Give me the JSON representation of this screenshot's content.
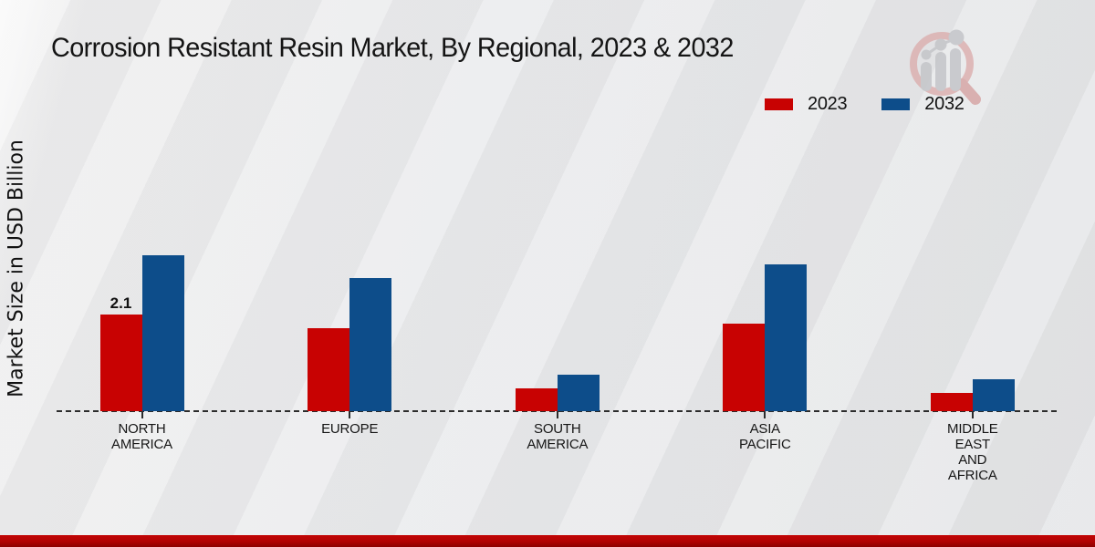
{
  "title": "Corrosion Resistant Resin Market, By Regional, 2023 & 2032",
  "y_axis_label": "Market Size in USD Billion",
  "legend": {
    "items": [
      {
        "label": "2023",
        "color": "#c80202"
      },
      {
        "label": "2032",
        "color": "#0d4d8a"
      }
    ]
  },
  "watermark_icon": "market-research-future-logo",
  "colors": {
    "series_2023": "#c80202",
    "series_2032": "#0d4d8a",
    "footer_band": "#b10303",
    "axis": "#2c2c2c"
  },
  "chart_data": {
    "type": "bar",
    "title": "Corrosion Resistant Resin Market, By Regional, 2023 & 2032",
    "xlabel": "",
    "ylabel": "Market Size in USD Billion",
    "ylim": [
      0,
      4
    ],
    "grid": false,
    "legend_position": "top-right",
    "baseline_style": "dashed",
    "categories": [
      "NORTH AMERICA",
      "EUROPE",
      "SOUTH AMERICA",
      "ASIA PACIFIC",
      "MIDDLE EAST AND AFRICA"
    ],
    "category_labels": [
      "NORTH\nAMERICA",
      "EUROPE",
      "SOUTH\nAMERICA",
      "ASIA\nPACIFIC",
      "MIDDLE\nEAST\nAND\nAFRICA"
    ],
    "series": [
      {
        "name": "2023",
        "color": "#c80202",
        "values": [
          2.1,
          1.8,
          0.5,
          1.9,
          0.4
        ]
      },
      {
        "name": "2032",
        "color": "#0d4d8a",
        "values": [
          3.4,
          2.9,
          0.8,
          3.2,
          0.7
        ]
      }
    ],
    "annotations": [
      {
        "series": "2023",
        "category": "NORTH AMERICA",
        "text": "2.1"
      }
    ]
  }
}
